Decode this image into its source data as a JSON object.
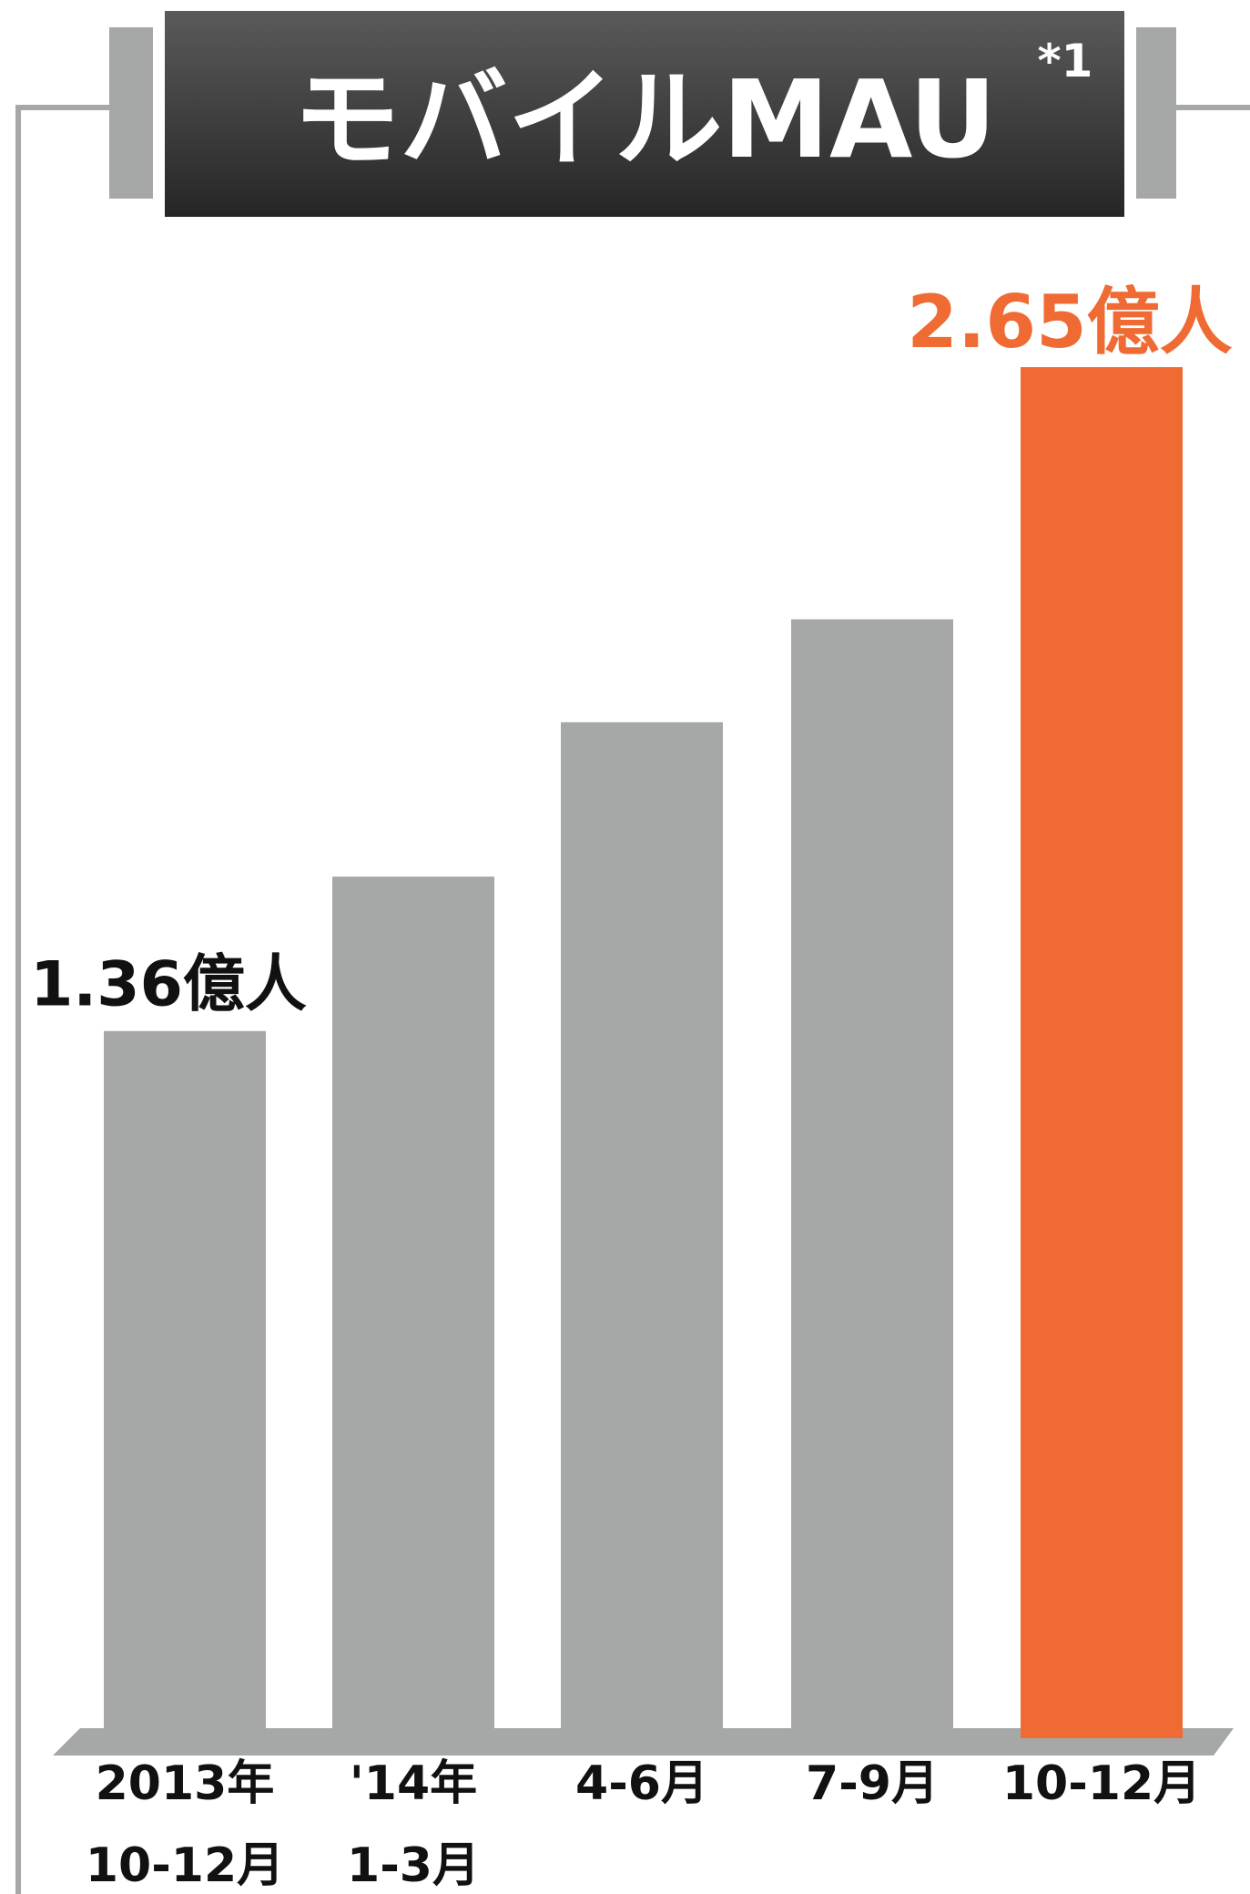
{
  "chart_data": {
    "type": "bar",
    "title": "モバイルMAU",
    "title_footnote": "*1",
    "categories": [
      [
        "2013年",
        "10-12月"
      ],
      [
        "'14年",
        "1-3月"
      ],
      [
        "4-6月"
      ],
      [
        "7-9月"
      ],
      [
        "10-12月"
      ]
    ],
    "values": [
      1.36,
      1.66,
      1.96,
      2.16,
      2.65
    ],
    "unit": "億人",
    "data_labels": [
      "1.36億人",
      "",
      "",
      "",
      "2.65億人"
    ],
    "ylim": [
      0,
      2.65
    ],
    "grid": false,
    "legend": "none",
    "colors": {
      "bar": "#a5a8a7",
      "highlight_bar": "#ef6b33",
      "highlight_label": "#ef6b33",
      "label": "#111111",
      "frame": "#a5a8a7",
      "title_box_top": "#5a5a5a",
      "title_box_bottom": "#262626",
      "title_text": "#ffffff",
      "base": "#a5a8a7"
    },
    "highlight_index": 4
  }
}
